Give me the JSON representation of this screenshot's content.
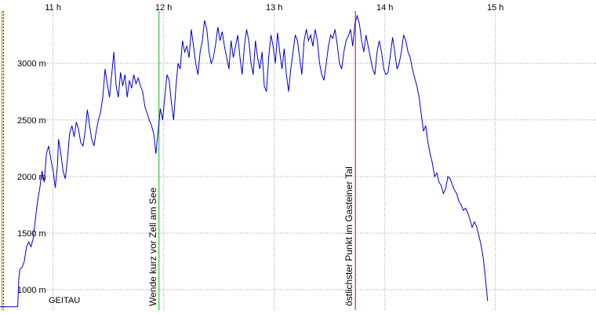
{
  "chart_data": {
    "type": "line",
    "title": "",
    "xlabel": "",
    "ylabel": "",
    "x_unit": "h",
    "y_unit": "m",
    "xlim": [
      10.52,
      15.13
    ],
    "ylim": [
      820,
      3490
    ],
    "x_ticks": [
      {
        "value": 11,
        "label": "11 h"
      },
      {
        "value": 12,
        "label": "12 h"
      },
      {
        "value": 13,
        "label": "13 h"
      },
      {
        "value": 14,
        "label": "14 h"
      },
      {
        "value": 15,
        "label": "15 h"
      }
    ],
    "y_ticks": [
      {
        "value": 1000,
        "label": "1000 m"
      },
      {
        "value": 1500,
        "label": "1500 m"
      },
      {
        "value": 2000,
        "label": "2000 m"
      },
      {
        "value": 2500,
        "label": "2500 m"
      },
      {
        "value": 3000,
        "label": "3000 m"
      }
    ],
    "grid": "dotted-vertical-and-horizontal",
    "series": [
      {
        "color": "#0000cc",
        "points": [
          [
            10.52,
            850
          ],
          [
            10.68,
            850
          ],
          [
            10.69,
            1100
          ],
          [
            10.7,
            1180
          ],
          [
            10.72,
            1200
          ],
          [
            10.74,
            1250
          ],
          [
            10.76,
            1380
          ],
          [
            10.78,
            1420
          ],
          [
            10.8,
            1380
          ],
          [
            10.82,
            1450
          ],
          [
            10.84,
            1620
          ],
          [
            10.86,
            1780
          ],
          [
            10.88,
            1900
          ],
          [
            10.9,
            2050
          ],
          [
            10.92,
            1950
          ],
          [
            10.94,
            2200
          ],
          [
            10.96,
            2270
          ],
          [
            10.98,
            2150
          ],
          [
            11.0,
            2050
          ],
          [
            11.02,
            1900
          ],
          [
            11.04,
            2100
          ],
          [
            11.05,
            2330
          ],
          [
            11.07,
            2200
          ],
          [
            11.09,
            2050
          ],
          [
            11.11,
            1980
          ],
          [
            11.13,
            2150
          ],
          [
            11.15,
            2380
          ],
          [
            11.17,
            2450
          ],
          [
            11.19,
            2350
          ],
          [
            11.21,
            2480
          ],
          [
            11.23,
            2420
          ],
          [
            11.25,
            2300
          ],
          [
            11.27,
            2270
          ],
          [
            11.29,
            2400
          ],
          [
            11.31,
            2590
          ],
          [
            11.33,
            2450
          ],
          [
            11.35,
            2330
          ],
          [
            11.37,
            2270
          ],
          [
            11.39,
            2400
          ],
          [
            11.41,
            2500
          ],
          [
            11.43,
            2570
          ],
          [
            11.45,
            2700
          ],
          [
            11.47,
            2950
          ],
          [
            11.49,
            2820
          ],
          [
            11.51,
            2700
          ],
          [
            11.53,
            2900
          ],
          [
            11.55,
            3100
          ],
          [
            11.57,
            2800
          ],
          [
            11.59,
            2700
          ],
          [
            11.61,
            2920
          ],
          [
            11.63,
            2800
          ],
          [
            11.65,
            2900
          ],
          [
            11.67,
            2700
          ],
          [
            11.69,
            2850
          ],
          [
            11.71,
            2780
          ],
          [
            11.73,
            2900
          ],
          [
            11.75,
            2820
          ],
          [
            11.77,
            2870
          ],
          [
            11.79,
            2800
          ],
          [
            11.81,
            2750
          ],
          [
            11.83,
            2620
          ],
          [
            11.85,
            2560
          ],
          [
            11.87,
            2500
          ],
          [
            11.89,
            2450
          ],
          [
            11.91,
            2380
          ],
          [
            11.93,
            2200
          ],
          [
            11.95,
            2400
          ],
          [
            11.97,
            2600
          ],
          [
            11.99,
            2500
          ],
          [
            12.01,
            2700
          ],
          [
            12.03,
            2900
          ],
          [
            12.05,
            2850
          ],
          [
            12.07,
            2650
          ],
          [
            12.09,
            2500
          ],
          [
            12.11,
            2780
          ],
          [
            12.13,
            3000
          ],
          [
            12.15,
            2950
          ],
          [
            12.17,
            3200
          ],
          [
            12.19,
            3100
          ],
          [
            12.21,
            3150
          ],
          [
            12.23,
            3050
          ],
          [
            12.25,
            3300
          ],
          [
            12.27,
            3150
          ],
          [
            12.29,
            3000
          ],
          [
            12.31,
            2900
          ],
          [
            12.33,
            3100
          ],
          [
            12.35,
            3200
          ],
          [
            12.37,
            3380
          ],
          [
            12.39,
            3300
          ],
          [
            12.41,
            3100
          ],
          [
            12.43,
            3000
          ],
          [
            12.45,
            3050
          ],
          [
            12.47,
            3170
          ],
          [
            12.49,
            3320
          ],
          [
            12.51,
            3200
          ],
          [
            12.53,
            3280
          ],
          [
            12.55,
            3150
          ],
          [
            12.57,
            3050
          ],
          [
            12.59,
            2950
          ],
          [
            12.61,
            3200
          ],
          [
            12.63,
            3050
          ],
          [
            12.65,
            3150
          ],
          [
            12.67,
            3250
          ],
          [
            12.69,
            3050
          ],
          [
            12.71,
            2900
          ],
          [
            12.73,
            3150
          ],
          [
            12.75,
            3300
          ],
          [
            12.77,
            3200
          ],
          [
            12.79,
            3000
          ],
          [
            12.81,
            2900
          ],
          [
            12.83,
            3200
          ],
          [
            12.85,
            3050
          ],
          [
            12.87,
            2950
          ],
          [
            12.89,
            3100
          ],
          [
            12.91,
            2800
          ],
          [
            12.93,
            2750
          ],
          [
            12.95,
            3050
          ],
          [
            12.97,
            3250
          ],
          [
            12.99,
            3150
          ],
          [
            13.01,
            3000
          ],
          [
            13.03,
            3270
          ],
          [
            13.05,
            3100
          ],
          [
            13.07,
            2950
          ],
          [
            13.09,
            3130
          ],
          [
            13.11,
            2900
          ],
          [
            13.13,
            2750
          ],
          [
            13.15,
            2950
          ],
          [
            13.17,
            3100
          ],
          [
            13.19,
            3250
          ],
          [
            13.21,
            3200
          ],
          [
            13.23,
            3050
          ],
          [
            13.25,
            2900
          ],
          [
            13.27,
            3200
          ],
          [
            13.29,
            3300
          ],
          [
            13.31,
            3200
          ],
          [
            13.33,
            3250
          ],
          [
            13.35,
            3150
          ],
          [
            13.37,
            3300
          ],
          [
            13.39,
            3200
          ],
          [
            13.41,
            3000
          ],
          [
            13.43,
            2900
          ],
          [
            13.45,
            2850
          ],
          [
            13.47,
            3000
          ],
          [
            13.49,
            3150
          ],
          [
            13.51,
            3250
          ],
          [
            13.53,
            3220
          ],
          [
            13.55,
            3300
          ],
          [
            13.57,
            3160
          ],
          [
            13.59,
            3000
          ],
          [
            13.61,
            2950
          ],
          [
            13.63,
            3100
          ],
          [
            13.65,
            3200
          ],
          [
            13.67,
            3240
          ],
          [
            13.69,
            3300
          ],
          [
            13.71,
            3150
          ],
          [
            13.73,
            3350
          ],
          [
            13.75,
            3420
          ],
          [
            13.77,
            3350
          ],
          [
            13.79,
            3200
          ],
          [
            13.81,
            3100
          ],
          [
            13.83,
            3250
          ],
          [
            13.85,
            3150
          ],
          [
            13.87,
            3050
          ],
          [
            13.89,
            2950
          ],
          [
            13.91,
            2900
          ],
          [
            13.93,
            3100
          ],
          [
            13.95,
            3200
          ],
          [
            13.97,
            3100
          ],
          [
            13.99,
            2950
          ],
          [
            14.01,
            2900
          ],
          [
            14.03,
            2920
          ],
          [
            14.05,
            3070
          ],
          [
            14.07,
            3230
          ],
          [
            14.09,
            3100
          ],
          [
            14.11,
            2950
          ],
          [
            14.13,
            3000
          ],
          [
            14.15,
            3100
          ],
          [
            14.17,
            3250
          ],
          [
            14.19,
            3200
          ],
          [
            14.21,
            3100
          ],
          [
            14.23,
            3050
          ],
          [
            14.25,
            2950
          ],
          [
            14.27,
            2870
          ],
          [
            14.29,
            2800
          ],
          [
            14.31,
            2700
          ],
          [
            14.33,
            2550
          ],
          [
            14.35,
            2400
          ],
          [
            14.37,
            2450
          ],
          [
            14.39,
            2300
          ],
          [
            14.41,
            2200
          ],
          [
            14.43,
            2120
          ],
          [
            14.45,
            2000
          ],
          [
            14.47,
            2030
          ],
          [
            14.49,
            1950
          ],
          [
            14.51,
            1920
          ],
          [
            14.53,
            1850
          ],
          [
            14.55,
            1890
          ],
          [
            14.57,
            2000
          ],
          [
            14.59,
            1980
          ],
          [
            14.61,
            1930
          ],
          [
            14.63,
            1880
          ],
          [
            14.65,
            1850
          ],
          [
            14.67,
            1780
          ],
          [
            14.69,
            1750
          ],
          [
            14.71,
            1700
          ],
          [
            14.73,
            1720
          ],
          [
            14.75,
            1680
          ],
          [
            14.77,
            1620
          ],
          [
            14.79,
            1550
          ],
          [
            14.81,
            1600
          ],
          [
            14.83,
            1560
          ],
          [
            14.85,
            1480
          ],
          [
            14.87,
            1400
          ],
          [
            14.89,
            1280
          ],
          [
            14.91,
            1100
          ],
          [
            14.92,
            1000
          ],
          [
            14.93,
            900
          ]
        ]
      }
    ],
    "markers": [
      {
        "x": 10.537,
        "color": "#ff8000",
        "label": ""
      },
      {
        "x": 10.55,
        "color": "#000000",
        "style": "dotted",
        "label": ""
      },
      {
        "x": 11.958,
        "color": "#00c000",
        "label": "Wende kurz vor Zell am See"
      },
      {
        "x": 13.734,
        "color": "#d00000",
        "label": "östlichster Punkt im Gasteiner Tal"
      }
    ],
    "start_label": "GEITAU"
  }
}
